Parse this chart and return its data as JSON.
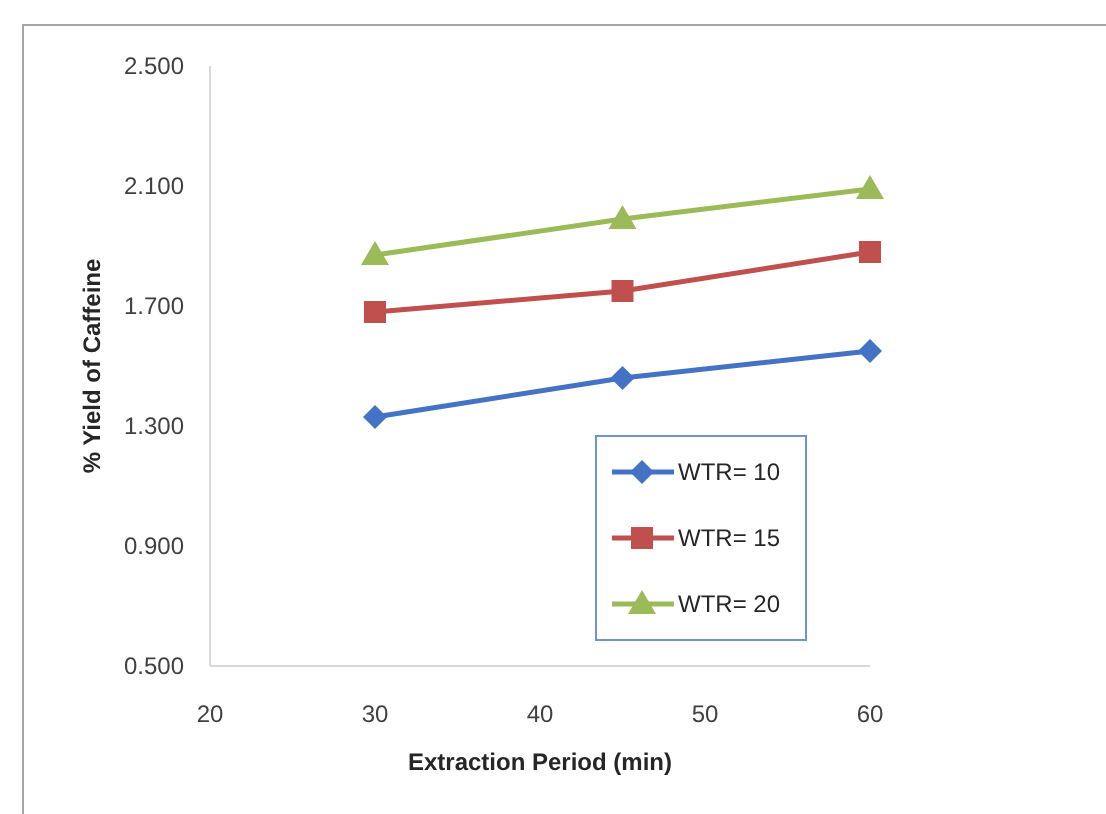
{
  "chart_data": {
    "type": "line",
    "xlabel": "Extraction Period (min)",
    "ylabel": "% Yield of Caffeine",
    "x": [
      30,
      45,
      60
    ],
    "series": [
      {
        "name": "WTR= 10",
        "color": "#4472c4",
        "values": [
          1.33,
          1.46,
          1.55
        ],
        "marker": "diamond"
      },
      {
        "name": "WTR= 15",
        "color": "#c0504d",
        "values": [
          1.68,
          1.75,
          1.88
        ],
        "marker": "square"
      },
      {
        "name": "WTR= 20",
        "color": "#9bbb59",
        "values": [
          1.87,
          1.99,
          2.09
        ],
        "marker": "triangle"
      }
    ],
    "xlim": [
      20,
      60
    ],
    "xticks": [
      20,
      30,
      40,
      50,
      60
    ],
    "ylim": [
      0.5,
      2.5
    ],
    "yticks": [
      {
        "value": 0.5,
        "label": "0.500"
      },
      {
        "value": 0.9,
        "label": "0.900"
      },
      {
        "value": 1.3,
        "label": "1.300"
      },
      {
        "value": 1.7,
        "label": "1.700"
      },
      {
        "value": 2.1,
        "label": "2.100"
      },
      {
        "value": 2.5,
        "label": "2.500"
      }
    ],
    "grid": false,
    "legend": "bottom right",
    "line_style": "solid"
  }
}
